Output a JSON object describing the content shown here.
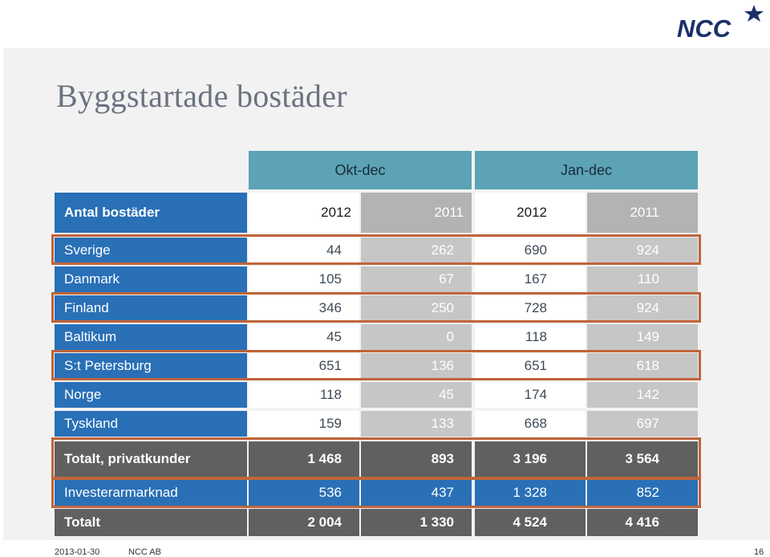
{
  "brand": {
    "logo_text": "NCC",
    "logo_color": "#1b2f6b"
  },
  "title": "Byggstartade bostäder",
  "table": {
    "group_headers": [
      "Okt-dec",
      "Jan-dec"
    ],
    "row_label_header": "Antal bostäder",
    "years": [
      "2012",
      "2011",
      "2012",
      "2011"
    ],
    "rows": [
      {
        "label": "Sverige",
        "values": [
          "44",
          "262",
          "690",
          "924"
        ]
      },
      {
        "label": "Danmark",
        "values": [
          "105",
          "67",
          "167",
          "110"
        ]
      },
      {
        "label": "Finland",
        "values": [
          "346",
          "250",
          "728",
          "924"
        ]
      },
      {
        "label": "Baltikum",
        "values": [
          "45",
          "0",
          "118",
          "149"
        ]
      },
      {
        "label": "S:t Petersburg",
        "values": [
          "651",
          "136",
          "651",
          "618"
        ]
      },
      {
        "label": "Norge",
        "values": [
          "118",
          "45",
          "174",
          "142"
        ]
      },
      {
        "label": "Tyskland",
        "values": [
          "159",
          "133",
          "668",
          "697"
        ]
      }
    ],
    "subtotal": {
      "label": "Totalt, privatkunder",
      "values": [
        "1 468",
        "893",
        "3 196",
        "3 564"
      ]
    },
    "investor": {
      "label": "Investerarmarknad",
      "values": [
        "536",
        "437",
        "1 328",
        "852"
      ]
    },
    "total": {
      "label": "Totalt",
      "values": [
        "2 004",
        "1 330",
        "4 524",
        "4 416"
      ]
    }
  },
  "colors": {
    "header_teal": "#5ba3b5",
    "label_blue": "#2970b7",
    "total_gray": "#606060",
    "highlight": "#c0643a"
  },
  "footer": {
    "date": "2013-01-30",
    "company": "NCC AB",
    "page": "16"
  }
}
